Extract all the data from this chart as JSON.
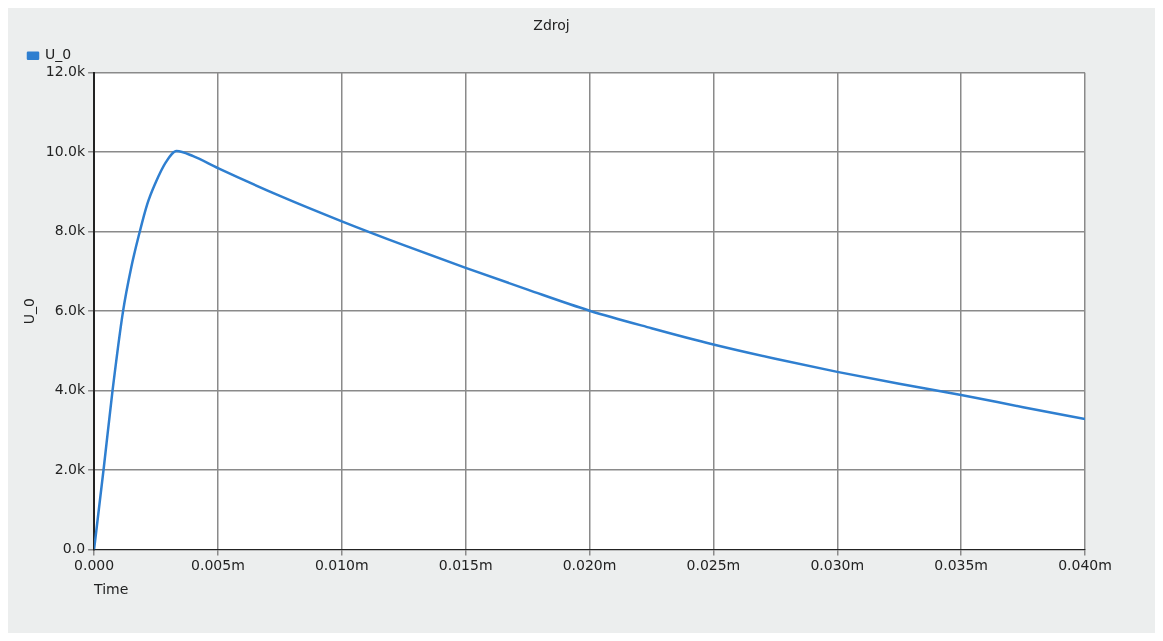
{
  "chart_data": {
    "type": "line",
    "title": "Zdroj",
    "xlabel": "Time",
    "ylabel": "U_0",
    "x": [
      0,
      0.0004,
      0.00074,
      0.00117,
      0.0015,
      0.00182,
      0.00215,
      0.00246,
      0.0029,
      0.00333,
      0.004,
      0.005,
      0.0075,
      0.01,
      0.0125,
      0.015,
      0.0175,
      0.02,
      0.0225,
      0.025,
      0.0275,
      0.03,
      0.0325,
      0.035,
      0.0375,
      0.04
    ],
    "series": [
      {
        "name": "U_0",
        "color": "#2f7fd0",
        "values": [
          0,
          2100,
          3970,
          6000,
          7100,
          7940,
          8700,
          9200,
          9750,
          10030,
          9900,
          9600,
          8900,
          8260,
          7660,
          7090,
          6540,
          6010,
          5570,
          5160,
          4800,
          4470,
          4170,
          3890,
          3580,
          3280
        ]
      }
    ],
    "xlim": [
      0,
      0.04
    ],
    "ylim": [
      0,
      12000
    ],
    "xticks": [
      {
        "value": 0,
        "label": "0.000"
      },
      {
        "value": 0.005,
        "label": "0.005m"
      },
      {
        "value": 0.01,
        "label": "0.010m"
      },
      {
        "value": 0.015,
        "label": "0.015m"
      },
      {
        "value": 0.02,
        "label": "0.020m"
      },
      {
        "value": 0.025,
        "label": "0.025m"
      },
      {
        "value": 0.03,
        "label": "0.030m"
      },
      {
        "value": 0.035,
        "label": "0.035m"
      },
      {
        "value": 0.04,
        "label": "0.040m"
      }
    ],
    "yticks": [
      {
        "value": 0,
        "label": "0.0"
      },
      {
        "value": 2000,
        "label": "2.0k"
      },
      {
        "value": 4000,
        "label": "4.0k"
      },
      {
        "value": 6000,
        "label": "6.0k"
      },
      {
        "value": 8000,
        "label": "8.0k"
      },
      {
        "value": 10000,
        "label": "10.0k"
      },
      {
        "value": 12000,
        "label": "12.0k"
      }
    ],
    "grid": true,
    "legend": "top left",
    "marker": "none",
    "line_style": "solid"
  }
}
